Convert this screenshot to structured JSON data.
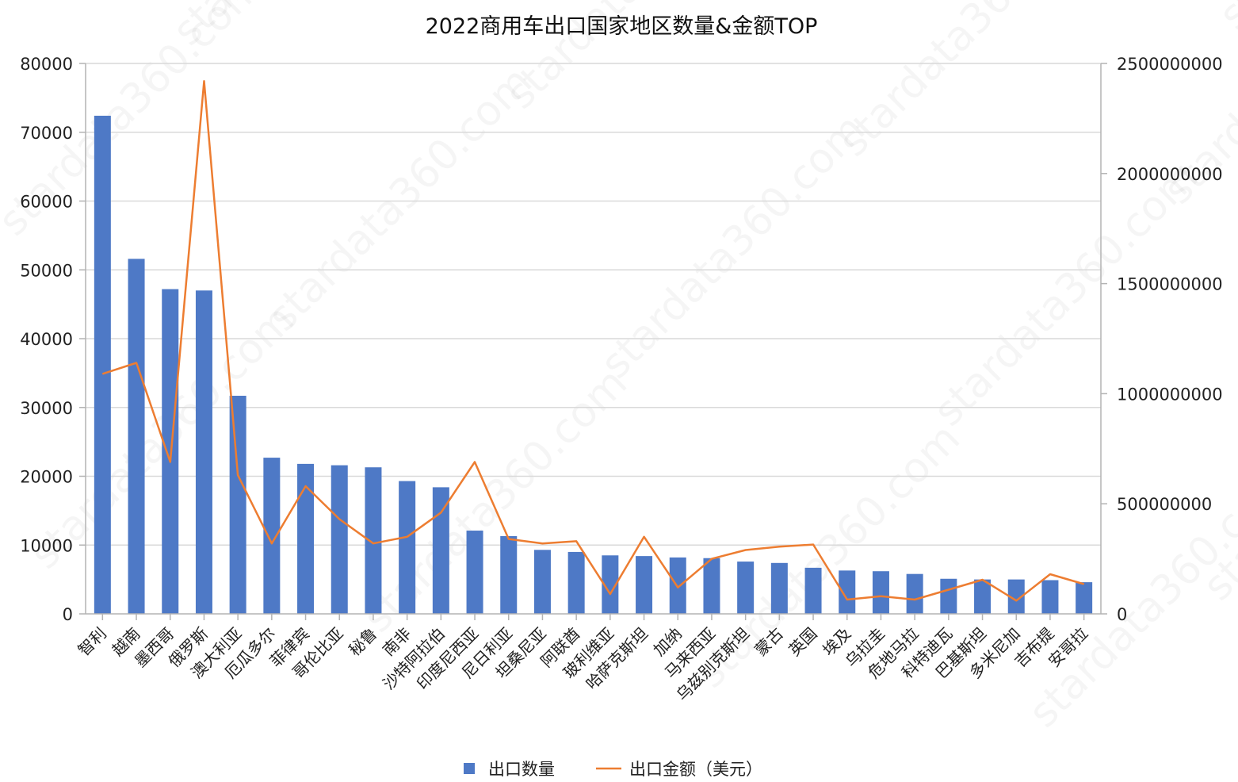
{
  "chart_data": {
    "type": "bar",
    "title": "2022商用车出口国家地区数量&金额TOP",
    "watermark": "stardata360.com",
    "categories": [
      "智利",
      "越南",
      "墨西哥",
      "俄罗斯",
      "澳大利亚",
      "厄瓜多尔",
      "菲律宾",
      "哥伦比亚",
      "秘鲁",
      "南非",
      "沙特阿拉伯",
      "印度尼西亚",
      "尼日利亚",
      "坦桑尼亚",
      "阿联酋",
      "玻利维亚",
      "哈萨克斯坦",
      "加纳",
      "马来西亚",
      "乌兹别克斯坦",
      "蒙古",
      "英国",
      "埃及",
      "乌拉圭",
      "危地马拉",
      "科特迪瓦",
      "巴基斯坦",
      "多米尼加",
      "吉布提",
      "安哥拉"
    ],
    "series": [
      {
        "name": "出口数量",
        "type": "bar",
        "axis": "left",
        "color": "#4e79c6",
        "values": [
          72400,
          51600,
          47200,
          47000,
          31700,
          22700,
          21800,
          21600,
          21300,
          19300,
          18400,
          12100,
          11300,
          9300,
          9000,
          8500,
          8400,
          8200,
          8100,
          7600,
          7400,
          6700,
          6300,
          6200,
          5800,
          5100,
          5000,
          5000,
          4900,
          4600
        ]
      },
      {
        "name": "出口金额（美元）",
        "type": "line",
        "axis": "right",
        "color": "#ed7d31",
        "values": [
          1090000000,
          1140000000,
          690000000,
          2420000000,
          630000000,
          320000000,
          580000000,
          430000000,
          320000000,
          350000000,
          460000000,
          690000000,
          340000000,
          320000000,
          330000000,
          90000000,
          350000000,
          120000000,
          250000000,
          290000000,
          305000000,
          315000000,
          65000000,
          80000000,
          65000000,
          110000000,
          155000000,
          60000000,
          180000000,
          135000000
        ]
      }
    ],
    "ylim_left": [
      0,
      80000
    ],
    "yticks_left": [
      "0",
      "10000",
      "20000",
      "30000",
      "40000",
      "50000",
      "60000",
      "70000",
      "80000"
    ],
    "ylim_right": [
      0,
      2500000000
    ],
    "yticks_right": [
      "0",
      "500000000",
      "1000000000",
      "1500000000",
      "2000000000",
      "2500000000"
    ],
    "grid": true,
    "legend_position": "bottom"
  }
}
